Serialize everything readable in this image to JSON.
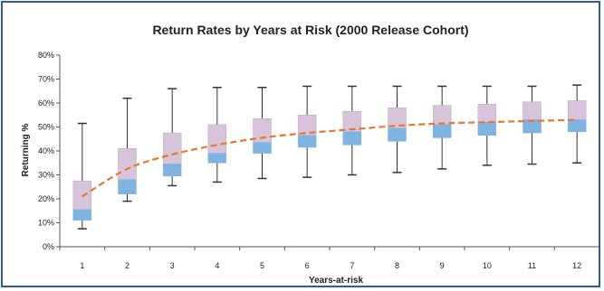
{
  "chart_data": {
    "type": "box",
    "title": "Return Rates by Years at Risk  (2000 Release Cohort)",
    "xlabel": "Years-at-risk",
    "ylabel": "Returning %",
    "ylim": [
      0,
      80
    ],
    "y_ticks": [
      "0%",
      "10%",
      "20%",
      "30%",
      "40%",
      "50%",
      "60%",
      "70%",
      "80%"
    ],
    "categories": [
      "1",
      "2",
      "3",
      "4",
      "5",
      "6",
      "7",
      "8",
      "9",
      "10",
      "11",
      "12"
    ],
    "boxes": [
      {
        "min": 7.5,
        "q1": 11,
        "median": 15.5,
        "q3": 27.5,
        "max": 51.5
      },
      {
        "min": 19,
        "q1": 22,
        "median": 28,
        "q3": 41,
        "max": 62
      },
      {
        "min": 25.5,
        "q1": 29.5,
        "median": 34.5,
        "q3": 47.5,
        "max": 66
      },
      {
        "min": 27,
        "q1": 35,
        "median": 39,
        "q3": 51,
        "max": 66.5
      },
      {
        "min": 28.5,
        "q1": 39,
        "median": 43.5,
        "q3": 53.5,
        "max": 66.5
      },
      {
        "min": 29,
        "q1": 41.5,
        "median": 46.5,
        "q3": 55,
        "max": 67
      },
      {
        "min": 30,
        "q1": 42.5,
        "median": 48,
        "q3": 56.5,
        "max": 67
      },
      {
        "min": 31,
        "q1": 44,
        "median": 49.5,
        "q3": 58,
        "max": 67
      },
      {
        "min": 32.5,
        "q1": 45.5,
        "median": 51,
        "q3": 59,
        "max": 67
      },
      {
        "min": 34,
        "q1": 46.5,
        "median": 52,
        "q3": 59.5,
        "max": 67
      },
      {
        "min": 34.5,
        "q1": 47.5,
        "median": 53,
        "q3": 60.5,
        "max": 67
      },
      {
        "min": 35,
        "q1": 48,
        "median": 53,
        "q3": 61,
        "max": 67.5
      }
    ],
    "trend": [
      21,
      32.5,
      38.5,
      42.5,
      45.5,
      47.5,
      49,
      50.5,
      51.5,
      52,
      52.5,
      53
    ],
    "colors": {
      "lower_box": "#7fb3e0",
      "upper_box": "#d8c4da",
      "box_edge": "#b8a6bd",
      "whisker": "#333333",
      "trend": "#e8762d",
      "frame": "#2e5d9e"
    }
  }
}
